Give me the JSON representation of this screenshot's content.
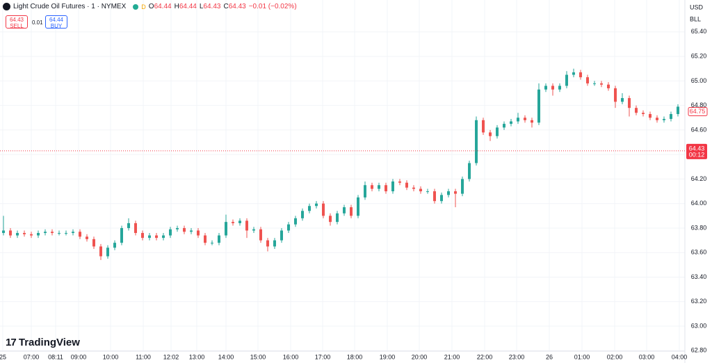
{
  "header": {
    "symbol": "Light Crude Oil Futures · 1 · NYMEX",
    "badge": "D",
    "ohlc": [
      {
        "key": "O",
        "value": 64.44
      },
      {
        "key": "H",
        "value": 64.44
      },
      {
        "key": "L",
        "value": 64.43
      },
      {
        "key": "C",
        "value": 64.43
      }
    ],
    "change": "−0.01 (−0.02%)",
    "sell": {
      "price": 64.43,
      "label": "SELL"
    },
    "spread": 0.01,
    "buy": {
      "price": 64.44,
      "label": "BUY"
    }
  },
  "brand": "TradingView",
  "chart_data": {
    "type": "candlestick",
    "up_color": "#26a69a",
    "down_color": "#ef5350",
    "currency": "USD",
    "unit": "BLL",
    "ylim": [
      62.796,
      65.66
    ],
    "yticks": [
      {
        "value": 62.8,
        "label": "62.80"
      },
      {
        "value": 63.0,
        "label": "63.00"
      },
      {
        "value": 63.2,
        "label": "63.20"
      },
      {
        "value": 63.4,
        "label": "63.40"
      },
      {
        "value": 63.6,
        "label": "63.60"
      },
      {
        "value": 63.8,
        "label": "63.80"
      },
      {
        "value": 64.0,
        "label": "64.00"
      },
      {
        "value": 64.2,
        "label": "64.20"
      },
      {
        "value": 64.4,
        "label": "64.40"
      },
      {
        "value": 64.6,
        "label": "64.60"
      },
      {
        "value": 64.8,
        "label": "64.80"
      },
      {
        "value": 65.0,
        "label": "65.00"
      },
      {
        "value": 65.2,
        "label": "65.20"
      },
      {
        "value": 65.4,
        "label": "65.40"
      }
    ],
    "x_axis_labels": [
      25,
      "07:00",
      "08:11",
      "09:00",
      "10:00",
      "11:00",
      "12:02",
      "13:00",
      "14:00",
      "15:00",
      "16:00",
      "17:00",
      "18:00",
      "19:00",
      "20:00",
      "21:00",
      "22:00",
      "23:00",
      26,
      "01:00",
      "02:00",
      "03:00",
      "04:00"
    ],
    "last_price": 64.75,
    "current_price": 64.43,
    "countdown": "00:12",
    "candles": [
      [
        63.76,
        63.9,
        63.74,
        63.78
      ],
      [
        63.78,
        63.8,
        63.72,
        63.74
      ],
      [
        63.74,
        63.78,
        63.72,
        63.76
      ],
      [
        63.76,
        63.78,
        63.73,
        63.75
      ],
      [
        63.75,
        63.77,
        63.72,
        63.74
      ],
      [
        63.74,
        63.78,
        63.72,
        63.76
      ],
      [
        63.76,
        63.79,
        63.74,
        63.77
      ],
      [
        63.77,
        63.79,
        63.74,
        63.76
      ],
      [
        63.76,
        63.78,
        63.74,
        63.76
      ],
      [
        63.76,
        63.78,
        63.74,
        63.76
      ],
      [
        63.76,
        63.79,
        63.74,
        63.77
      ],
      [
        63.77,
        63.79,
        63.71,
        63.73
      ],
      [
        63.73,
        63.75,
        63.69,
        63.71
      ],
      [
        63.71,
        63.73,
        63.63,
        63.65
      ],
      [
        63.65,
        63.67,
        63.54,
        63.57
      ],
      [
        63.57,
        63.66,
        63.55,
        63.64
      ],
      [
        63.64,
        63.7,
        63.62,
        63.68
      ],
      [
        63.68,
        63.82,
        63.66,
        63.8
      ],
      [
        63.8,
        63.88,
        63.78,
        63.84
      ],
      [
        63.84,
        63.86,
        63.74,
        63.76
      ],
      [
        63.76,
        63.78,
        63.7,
        63.72
      ],
      [
        63.72,
        63.76,
        63.7,
        63.74
      ],
      [
        63.74,
        63.76,
        63.7,
        63.72
      ],
      [
        63.72,
        63.76,
        63.7,
        63.74
      ],
      [
        63.74,
        63.81,
        63.72,
        63.79
      ],
      [
        63.79,
        63.82,
        63.77,
        63.8
      ],
      [
        63.8,
        63.82,
        63.75,
        63.77
      ],
      [
        63.77,
        63.8,
        63.75,
        63.78
      ],
      [
        63.78,
        63.8,
        63.72,
        63.74
      ],
      [
        63.74,
        63.76,
        63.66,
        63.68
      ],
      [
        63.68,
        63.7,
        63.66,
        63.68
      ],
      [
        63.68,
        63.76,
        63.66,
        63.74
      ],
      [
        63.74,
        63.91,
        63.72,
        63.85
      ],
      [
        63.85,
        63.87,
        63.82,
        63.84
      ],
      [
        63.84,
        63.88,
        63.82,
        63.86
      ],
      [
        63.86,
        63.88,
        63.72,
        63.78
      ],
      [
        63.78,
        63.81,
        63.76,
        63.79
      ],
      [
        63.79,
        63.81,
        63.68,
        63.7
      ],
      [
        63.7,
        63.72,
        63.61,
        63.65
      ],
      [
        63.65,
        63.72,
        63.63,
        63.7
      ],
      [
        63.7,
        63.8,
        63.68,
        63.78
      ],
      [
        63.78,
        63.85,
        63.76,
        63.83
      ],
      [
        63.83,
        63.9,
        63.81,
        63.88
      ],
      [
        63.88,
        63.96,
        63.86,
        63.94
      ],
      [
        63.94,
        64.0,
        63.92,
        63.98
      ],
      [
        63.98,
        64.02,
        63.96,
        64.0
      ],
      [
        64.0,
        64.02,
        63.88,
        63.9
      ],
      [
        63.9,
        63.92,
        63.82,
        63.85
      ],
      [
        63.85,
        63.94,
        63.83,
        63.92
      ],
      [
        63.92,
        63.99,
        63.9,
        63.97
      ],
      [
        63.97,
        63.99,
        63.88,
        63.9
      ],
      [
        63.9,
        64.07,
        63.88,
        64.05
      ],
      [
        64.05,
        64.18,
        64.03,
        64.15
      ],
      [
        64.15,
        64.17,
        64.1,
        64.12
      ],
      [
        64.12,
        64.17,
        64.1,
        64.15
      ],
      [
        64.15,
        64.17,
        64.08,
        64.1
      ],
      [
        64.1,
        64.2,
        64.08,
        64.18
      ],
      [
        64.18,
        64.2,
        64.15,
        64.17
      ],
      [
        64.17,
        64.19,
        64.11,
        64.13
      ],
      [
        64.13,
        64.15,
        64.1,
        64.12
      ],
      [
        64.12,
        64.14,
        64.08,
        64.1
      ],
      [
        64.1,
        64.12,
        64.08,
        64.1
      ],
      [
        64.1,
        64.12,
        64.0,
        64.02
      ],
      [
        64.02,
        64.09,
        64.0,
        64.07
      ],
      [
        64.07,
        64.12,
        64.05,
        64.1
      ],
      [
        64.1,
        64.12,
        63.97,
        64.08
      ],
      [
        64.08,
        64.22,
        64.06,
        64.2
      ],
      [
        64.2,
        64.35,
        64.18,
        64.33
      ],
      [
        64.33,
        64.71,
        64.31,
        64.68
      ],
      [
        64.68,
        64.7,
        64.56,
        64.58
      ],
      [
        64.58,
        64.6,
        64.51,
        64.55
      ],
      [
        64.55,
        64.64,
        64.53,
        64.62
      ],
      [
        64.62,
        64.67,
        64.6,
        64.65
      ],
      [
        64.65,
        64.69,
        64.63,
        64.67
      ],
      [
        64.67,
        64.74,
        64.65,
        64.7
      ],
      [
        64.7,
        64.72,
        64.66,
        64.68
      ],
      [
        64.68,
        64.7,
        64.62,
        64.66
      ],
      [
        64.66,
        64.98,
        64.64,
        64.93
      ],
      [
        64.93,
        64.98,
        64.91,
        64.96
      ],
      [
        64.96,
        64.98,
        64.88,
        64.93
      ],
      [
        64.93,
        64.98,
        64.91,
        64.96
      ],
      [
        64.96,
        65.08,
        64.94,
        65.05
      ],
      [
        65.05,
        65.1,
        65.03,
        65.07
      ],
      [
        65.07,
        65.09,
        65.01,
        65.03
      ],
      [
        65.03,
        65.05,
        64.96,
        64.98
      ],
      [
        64.98,
        65.0,
        64.96,
        64.98
      ],
      [
        64.98,
        65.0,
        64.95,
        64.97
      ],
      [
        64.97,
        64.99,
        64.92,
        64.94
      ],
      [
        64.94,
        64.96,
        64.78,
        64.83
      ],
      [
        64.83,
        64.9,
        64.81,
        64.86
      ],
      [
        64.86,
        64.88,
        64.71,
        64.78
      ],
      [
        64.78,
        64.8,
        64.72,
        64.74
      ],
      [
        64.74,
        64.76,
        64.71,
        64.73
      ],
      [
        64.73,
        64.75,
        64.68,
        64.7
      ],
      [
        64.7,
        64.72,
        64.66,
        64.68
      ],
      [
        64.68,
        64.71,
        64.66,
        64.69
      ],
      [
        64.69,
        64.75,
        64.67,
        64.73
      ],
      [
        64.73,
        64.81,
        64.71,
        64.79
      ]
    ]
  }
}
